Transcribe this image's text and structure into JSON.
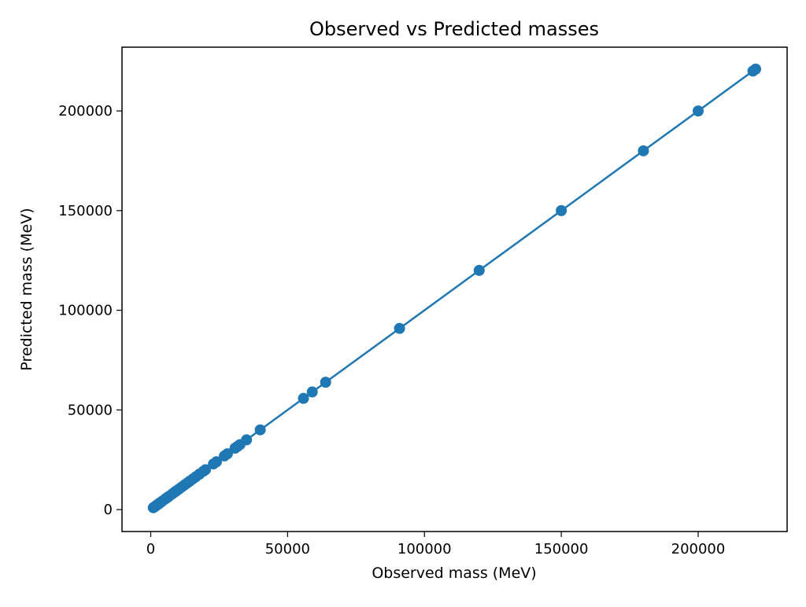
{
  "chart_data": {
    "type": "scatter",
    "title": "Observed vs Predicted masses",
    "xlabel": "Observed mass (MeV)",
    "ylabel": "Predicted mass (MeV)",
    "xlim": [
      -10500,
      232500
    ],
    "ylim": [
      -11000,
      232000
    ],
    "xticks": [
      0,
      50000,
      100000,
      150000,
      200000
    ],
    "yticks": [
      0,
      50000,
      100000,
      150000,
      200000
    ],
    "xtick_labels": [
      "0",
      "50000",
      "100000",
      "150000",
      "200000"
    ],
    "ytick_labels": [
      "0",
      "50000",
      "100000",
      "150000",
      "200000"
    ],
    "grid": false,
    "legend": "none",
    "color": "#1f77b4",
    "series": [
      {
        "markers": "circle",
        "connected_line": true,
        "x": [
          938,
          1100,
          1500,
          1900,
          2300,
          2700,
          3100,
          3500,
          4200,
          5300,
          6000,
          6600,
          7800,
          8700,
          9300,
          10300,
          11300,
          12300,
          13300,
          14300,
          15400,
          16500,
          17800,
          19200,
          20000,
          22900,
          24000,
          26900,
          28000,
          30800,
          31700,
          32600,
          35000,
          40000,
          55800,
          59000,
          63900,
          90900,
          120000,
          150000,
          180000,
          200000,
          220000,
          221000
        ],
        "y": [
          938,
          1100,
          1500,
          1900,
          2300,
          2700,
          3100,
          3500,
          4200,
          5300,
          6000,
          6600,
          7800,
          8700,
          9300,
          10300,
          11300,
          12300,
          13300,
          14300,
          15400,
          16500,
          17800,
          19200,
          20000,
          22900,
          24000,
          26900,
          28000,
          30800,
          31700,
          32600,
          35000,
          40000,
          55800,
          59000,
          63900,
          90900,
          120000,
          150000,
          180000,
          200000,
          220000,
          221000
        ]
      }
    ]
  }
}
